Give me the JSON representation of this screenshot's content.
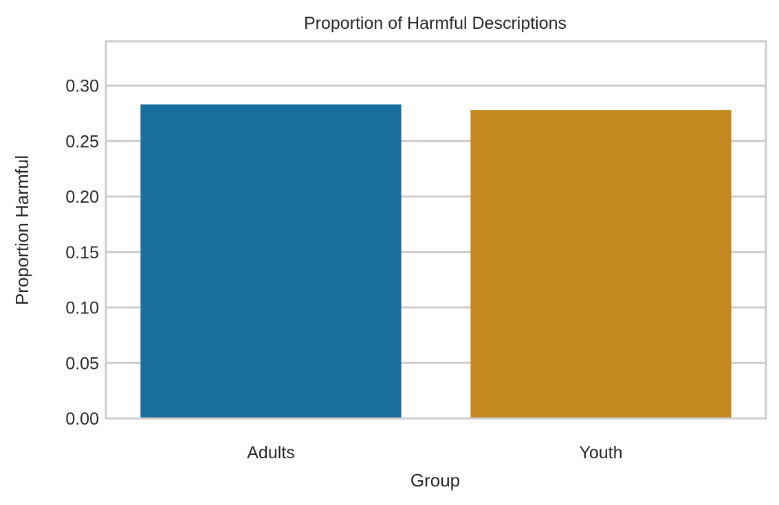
{
  "chart_data": {
    "type": "bar",
    "title": "Proportion of Harmful Descriptions",
    "xlabel": "Group",
    "ylabel": "Proportion Harmful",
    "categories": [
      "Adults",
      "Youth"
    ],
    "values": [
      0.283,
      0.278
    ],
    "bar_colors": [
      "#1a6e9e",
      "#c48820"
    ],
    "ylim": [
      0,
      0.34
    ],
    "yticks": [
      0.0,
      0.05,
      0.1,
      0.15,
      0.2,
      0.25,
      0.3
    ],
    "ytick_labels": [
      "0.00",
      "0.05",
      "0.10",
      "0.15",
      "0.20",
      "0.25",
      "0.30"
    ],
    "grid": true,
    "grid_axis": "y",
    "grid_color": "#cccccc",
    "spine_color": "#cccccc",
    "legend": "none"
  }
}
